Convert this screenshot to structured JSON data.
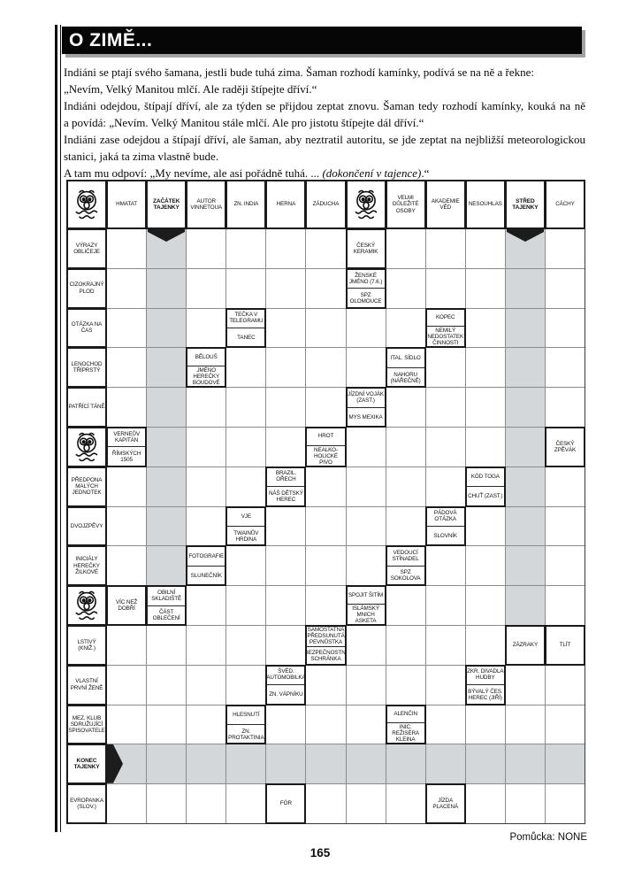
{
  "title": "O ZIMĚ...",
  "colors": {
    "shaded_cell": "#d4d7da",
    "bar_black": "#060606",
    "bar_shadow": "#a3a3a3"
  },
  "intro": {
    "lines": [
      {
        "text": "Indiáni se ptají svého šamana, jestli bude tuhá zima. Šaman rozhodí kamínky, podívá se na ně a řekne:",
        "j": false
      },
      {
        "text": "„Nevím, Velký Manitou mlčí. Ale raději štípejte dříví.“",
        "j": false
      },
      {
        "text": "Indiáni odejdou, štípají dříví, ale za týden se přijdou zeptat znovu. Šaman tedy rozhodí kamínky, kouká na ně",
        "j": true
      },
      {
        "text": "a povídá: „Nevím. Velký Manitou stále mlčí. Ale pro jistotu štípejte dál dříví.“",
        "j": false
      },
      {
        "text": "Indiáni zase odejdou a štípají dříví, ale šaman, aby neztratil autoritu, se jde zeptat na nejbližší meteorologickou",
        "j": true
      },
      {
        "text": "stanici, jaká ta zima vlastně bude.",
        "j": false
      }
    ],
    "last_pre": "A tam mu odpoví: „My nevíme, ale asi pořádně tuhá. ... ",
    "last_italic": "(dokončení v tajence)",
    "last_post": ".“"
  },
  "footer": {
    "helper": "Pomůcka: NONE",
    "page_number": "165"
  },
  "grid": {
    "columns": 13,
    "rows": [
      [
        {
          "type": "icon",
          "name": "scared-face-icon"
        },
        {
          "type": "clue",
          "text": "HMATAT"
        },
        {
          "type": "clue",
          "text": "ZAČÁTEK TAJENKY",
          "bold": true
        },
        {
          "type": "clue",
          "text": "AUTOR VINNETOUA"
        },
        {
          "type": "clue",
          "text": "ZN. INDIA"
        },
        {
          "type": "clue",
          "text": "HERNA"
        },
        {
          "type": "clue",
          "text": "ZÁDUCHA"
        },
        {
          "type": "icon",
          "name": "scared-face-icon"
        },
        {
          "type": "clue",
          "text": "VELMI DŮLEŽITÉ OSOBY"
        },
        {
          "type": "clue",
          "text": "AKADEMIE VĚD"
        },
        {
          "type": "clue",
          "text": "NESOUHLAS"
        },
        {
          "type": "clue",
          "text": "STŘED TAJENKY",
          "bold": true
        },
        {
          "type": "clue",
          "text": "CÁCHY"
        }
      ],
      [
        {
          "type": "clue",
          "text": "VÝRAZY OBLIČEJE"
        },
        null,
        {
          "type": "shaded",
          "arrow": "down"
        },
        null,
        null,
        null,
        null,
        {
          "type": "clue",
          "text": "ČESKÝ KERAMIK"
        },
        null,
        null,
        null,
        {
          "type": "shaded",
          "arrow": "down"
        },
        null
      ],
      [
        {
          "type": "clue",
          "text": "CIZOKRAJNÝ PLOD"
        },
        null,
        {
          "type": "shaded"
        },
        null,
        null,
        null,
        null,
        {
          "type": "split",
          "top": "ŽENSKÉ JMÉNO (7.6.)",
          "bottom": "SPZ OLOMOUCE"
        },
        null,
        null,
        null,
        {
          "type": "shaded"
        },
        null
      ],
      [
        {
          "type": "clue",
          "text": "OTÁZKA NA ČAS"
        },
        null,
        {
          "type": "shaded"
        },
        null,
        {
          "type": "split",
          "top": "TEČKA V TELEGRAMU",
          "bottom": "TANEC"
        },
        null,
        null,
        null,
        null,
        {
          "type": "split",
          "top": "KOPEC",
          "bottom": "NEMILÝ NEDOSTATEK ČINNOSTI"
        },
        null,
        {
          "type": "shaded"
        },
        null
      ],
      [
        {
          "type": "clue",
          "text": "LENOCHOD TŘÍPRSTÝ"
        },
        null,
        {
          "type": "shaded"
        },
        {
          "type": "split",
          "top": "BĚLOUŠ",
          "bottom": "JMÉNO HEREČKY BOUDOVÉ"
        },
        null,
        null,
        null,
        null,
        {
          "type": "split",
          "top": "ITAL. SÍDLO",
          "bottom": "NAHORU (NÁŘEČNĚ)"
        },
        null,
        null,
        {
          "type": "shaded"
        },
        null
      ],
      [
        {
          "type": "clue",
          "text": "PATŘÍCÍ TÁNĚ"
        },
        null,
        {
          "type": "shaded"
        },
        null,
        null,
        null,
        null,
        {
          "type": "split",
          "top": "JÍZDNÍ VOJÁK (ZAST.)",
          "bottom": "MYS MEXIKA"
        },
        null,
        null,
        null,
        {
          "type": "shaded"
        },
        null
      ],
      [
        {
          "type": "icon",
          "name": "scared-face-icon"
        },
        {
          "type": "split",
          "top": "VERNEŮV KAPITÁN",
          "bottom": "ŘÍMSKÝCH 1505"
        },
        {
          "type": "shaded"
        },
        null,
        null,
        null,
        {
          "type": "split",
          "top": "HROT",
          "bottom": "NEALKO- HOLICKÉ PIVO"
        },
        null,
        null,
        null,
        null,
        {
          "type": "shaded"
        },
        {
          "type": "clue",
          "text": "ČESKÝ ZPĚVÁK"
        }
      ],
      [
        {
          "type": "clue",
          "text": "PŘEDPONA MALÝCH JEDNOTEK"
        },
        null,
        {
          "type": "shaded"
        },
        null,
        null,
        {
          "type": "split",
          "top": "BRAZIL. OŘECH",
          "bottom": "NÁŠ DĚTSKÝ HEREC"
        },
        null,
        null,
        null,
        null,
        {
          "type": "split",
          "top": "KÓD TOGA",
          "bottom": "CHUŤ (ZAST.)"
        },
        {
          "type": "shaded"
        },
        null
      ],
      [
        {
          "type": "clue",
          "text": "DVOJZPĚVY"
        },
        null,
        {
          "type": "shaded"
        },
        null,
        {
          "type": "split",
          "top": "VJE",
          "bottom": "TWAINŮV HRDINA"
        },
        null,
        null,
        null,
        null,
        {
          "type": "split",
          "top": "PÁDOVÁ OTÁZKA",
          "bottom": "SLOVNÍK"
        },
        null,
        {
          "type": "shaded"
        },
        null
      ],
      [
        {
          "type": "clue",
          "text": "INICIÁLY HEREČKY ŽILKOVÉ"
        },
        null,
        {
          "type": "shaded"
        },
        {
          "type": "split",
          "top": "FOTOGRAFIE",
          "bottom": "SLUNEČNÍK"
        },
        null,
        null,
        null,
        null,
        {
          "type": "split",
          "top": "VEDOUCÍ STÍNADEL",
          "bottom": "SPZ SOKOLOVA"
        },
        null,
        null,
        {
          "type": "shaded"
        },
        null
      ],
      [
        {
          "type": "icon",
          "name": "scared-face-icon"
        },
        {
          "type": "clue",
          "text": "VÍC NEŽ DOBŘÍ"
        },
        {
          "type": "split",
          "top": "OBILNÍ SKLADIŠTĚ",
          "bottom": "ČÁST OBLEČENÍ"
        },
        null,
        null,
        null,
        null,
        {
          "type": "split",
          "top": "SPOJIT ŠITÍM",
          "bottom": "ISLÁMSKÝ MNICH ASKETA"
        },
        null,
        null,
        null,
        {
          "type": "shaded"
        },
        null
      ],
      [
        {
          "type": "clue",
          "text": "LSTIVÝ (KNIŽ.)"
        },
        null,
        null,
        null,
        null,
        null,
        {
          "type": "split",
          "top": "SAMOSTATNÁ PŘEDSUNUTÁ PEVNŮSTKA",
          "bottom": "BEZPEČNOSTNÍ SCHRÁNKA"
        },
        null,
        null,
        null,
        null,
        {
          "type": "clue",
          "text": "ZÁZRAKY"
        },
        {
          "type": "clue",
          "text": "TLÍT"
        }
      ],
      [
        {
          "type": "clue",
          "text": "VLASTNÍ PRVNÍ ŽENĚ"
        },
        null,
        null,
        null,
        null,
        {
          "type": "split",
          "top": "ŠVÉD. AUTOMOBILKA",
          "bottom": "ZN. VÁPNÍKU"
        },
        null,
        null,
        null,
        null,
        {
          "type": "split",
          "top": "ZKR. DIVADLA HUDBY",
          "bottom": "BÝVALÝ ČES. HEREC (JIŘÍ)"
        },
        null,
        null
      ],
      [
        {
          "type": "clue",
          "text": "MEZ. KLUB SDRUŽUJÍCÍ SPISOVATELE"
        },
        null,
        null,
        null,
        {
          "type": "split",
          "top": "HLESNUTÍ",
          "bottom": "ZN. PROTAKTINIA"
        },
        null,
        null,
        null,
        {
          "type": "split",
          "top": "ALENČIN",
          "bottom": "INIC. REŽISÉRA KLEINA"
        },
        null,
        null,
        null,
        null
      ],
      [
        {
          "type": "clue",
          "text": "KONEC TAJENKY",
          "bold": true
        },
        {
          "type": "shaded",
          "arrow": "right"
        },
        {
          "type": "shaded"
        },
        {
          "type": "shaded"
        },
        {
          "type": "shaded"
        },
        {
          "type": "shaded"
        },
        {
          "type": "shaded"
        },
        {
          "type": "shaded"
        },
        {
          "type": "shaded"
        },
        {
          "type": "shaded"
        },
        {
          "type": "shaded"
        },
        {
          "type": "shaded"
        },
        {
          "type": "shaded"
        }
      ],
      [
        {
          "type": "clue",
          "text": "EVROPANKA (SLOV.)"
        },
        null,
        null,
        null,
        null,
        {
          "type": "clue",
          "text": "FÓR"
        },
        null,
        null,
        null,
        {
          "type": "clue",
          "text": "JÍZDA PLACENÁ"
        },
        null,
        null,
        null
      ]
    ]
  }
}
